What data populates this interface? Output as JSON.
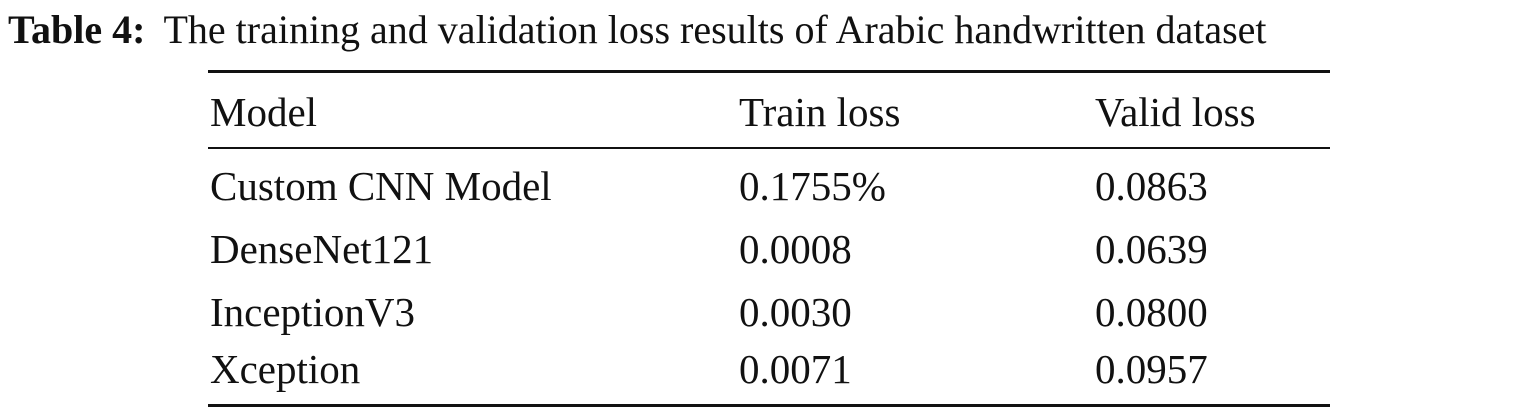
{
  "table": {
    "caption_label": "Table 4:",
    "caption_text": "The training and validation loss results of Arabic handwritten dataset",
    "headers": [
      "Model",
      "Train loss",
      "Valid loss"
    ],
    "rows": [
      [
        "Custom CNN Model",
        "0.1755%",
        "0.0863"
      ],
      [
        "DenseNet121",
        "0.0008",
        "0.0639"
      ],
      [
        "InceptionV3",
        "0.0030",
        "0.0800"
      ],
      [
        "Xception",
        "0.0071",
        "0.0957"
      ]
    ]
  }
}
